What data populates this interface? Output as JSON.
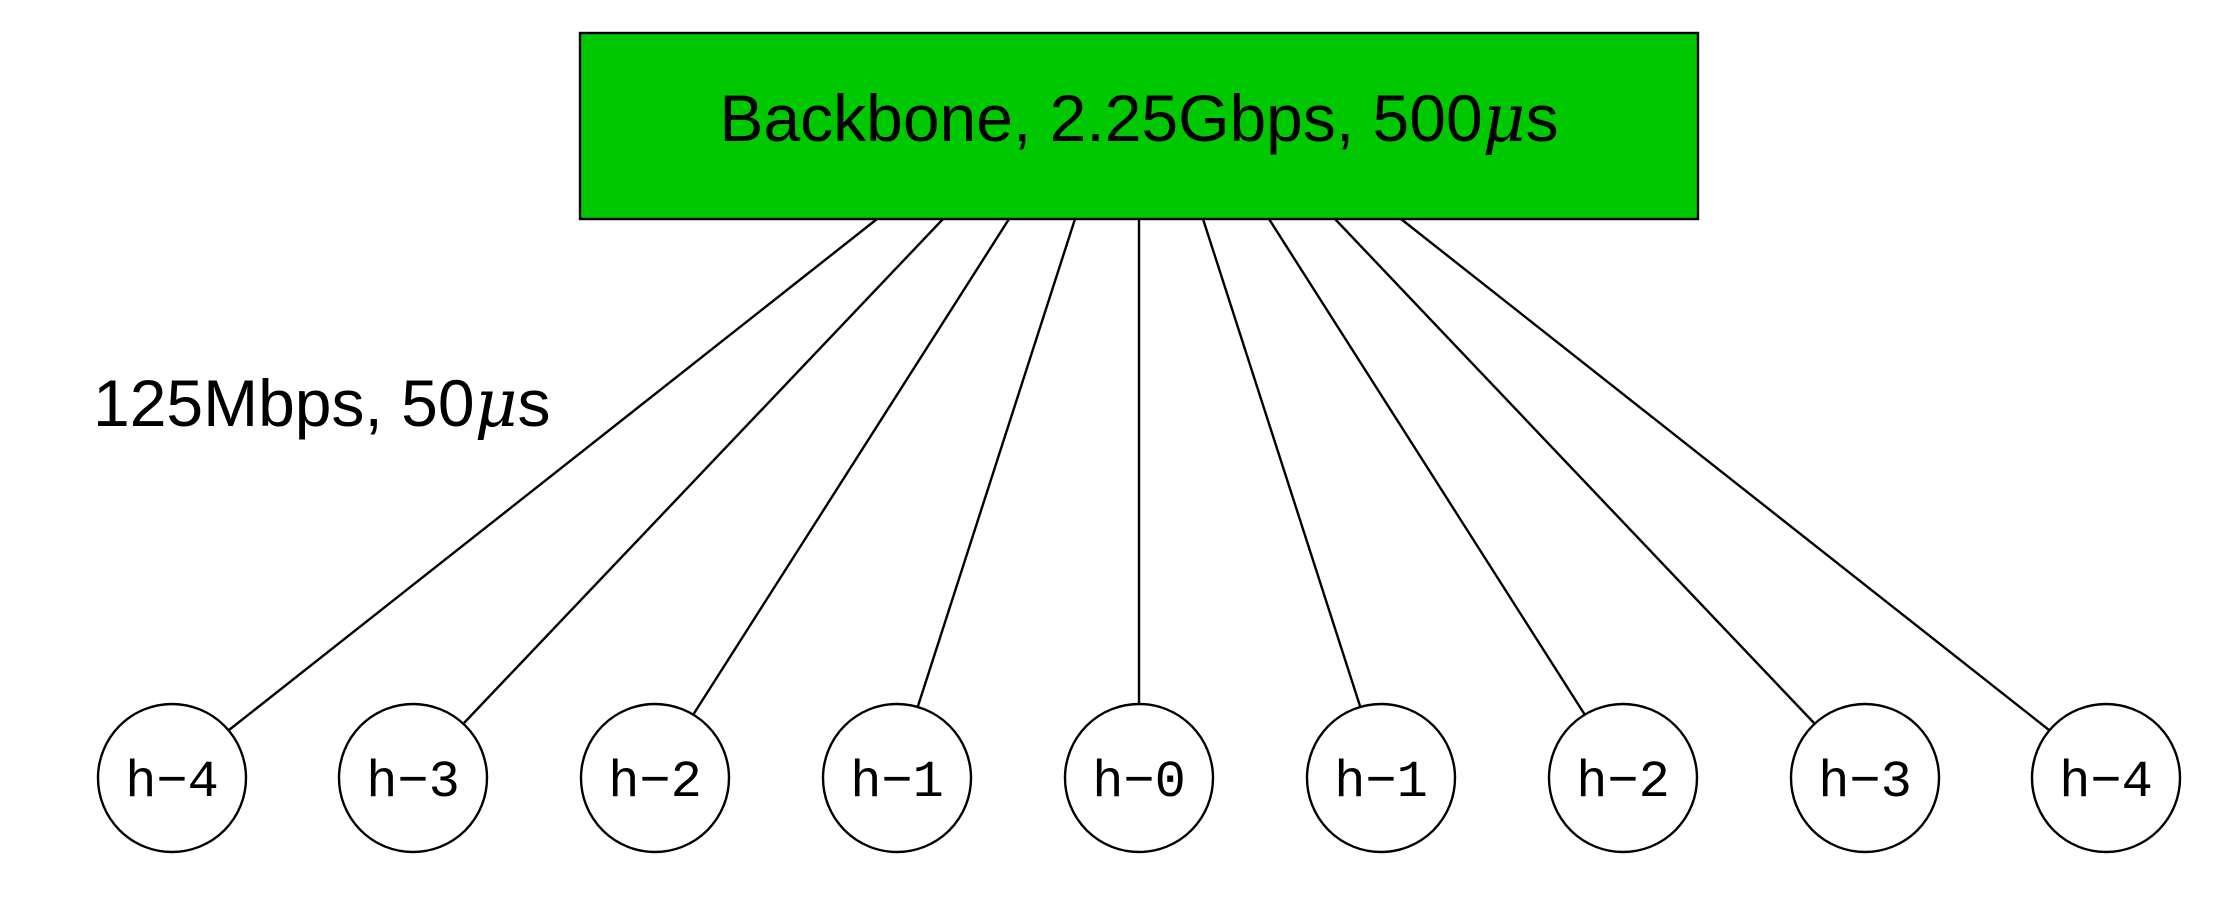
{
  "backbone": {
    "label_main": "Backbone, 2.25Gbps, 500",
    "label_mu": "μ",
    "label_unit": "s",
    "fill_color": "#00c800"
  },
  "link_label": {
    "main": "125Mbps, 50",
    "mu": "μ",
    "unit": "s"
  },
  "hosts": [
    {
      "label": "h−4"
    },
    {
      "label": "h−3"
    },
    {
      "label": "h−2"
    },
    {
      "label": "h−1"
    },
    {
      "label": "h−0"
    },
    {
      "label": "h−1"
    },
    {
      "label": "h−2"
    },
    {
      "label": "h−3"
    },
    {
      "label": "h−4"
    }
  ]
}
